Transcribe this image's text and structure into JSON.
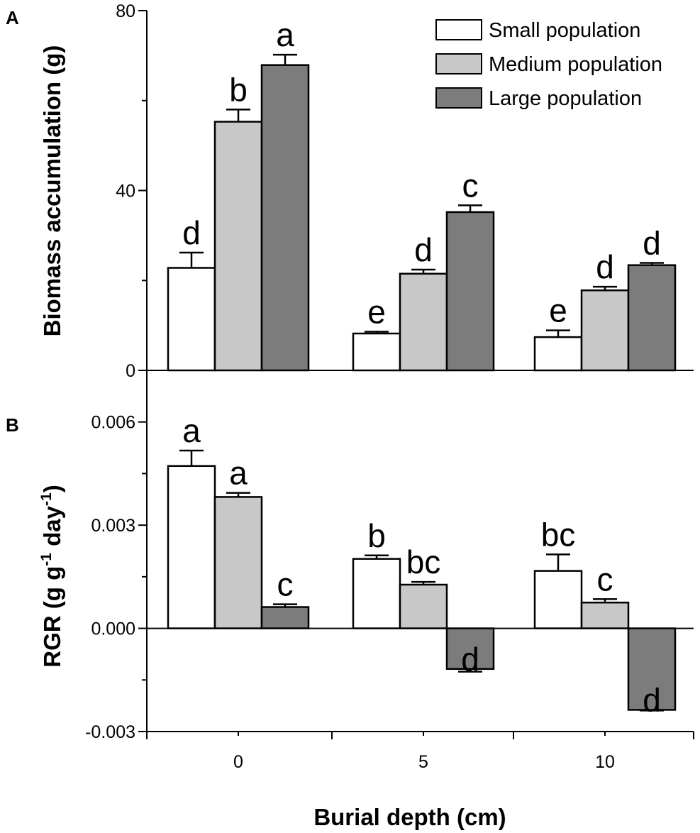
{
  "figure": {
    "xlabel": "Burial depth (cm)",
    "colors": {
      "Small population": "#ffffff",
      "Medium population": "#c8c8c8",
      "Large population": "#7c7c7c",
      "axis": "#000000"
    }
  },
  "chart_data": [
    {
      "type": "bar",
      "panel_label": "A",
      "ylabel": "Biomass accumulation (g)",
      "xlabel": "Burial depth (cm)",
      "categories": [
        "0",
        "5",
        "10"
      ],
      "ylim": [
        0,
        80
      ],
      "y_ticks": [
        0,
        40,
        80
      ],
      "y_tick_labels": [
        "0",
        "40",
        "80"
      ],
      "legend": [
        "Small population",
        "Medium population",
        "Large population"
      ],
      "legend_position": "top-right",
      "series": [
        {
          "name": "Small population",
          "values": [
            22.8,
            8.2,
            7.4
          ],
          "errors": [
            3.4,
            0.4,
            1.5
          ],
          "letters": [
            "d",
            "e",
            "e"
          ]
        },
        {
          "name": "Medium population",
          "values": [
            55.3,
            21.5,
            17.8
          ],
          "errors": [
            2.7,
            0.9,
            0.8
          ],
          "letters": [
            "b",
            "d",
            "d"
          ]
        },
        {
          "name": "Large population",
          "values": [
            67.9,
            35.2,
            23.4
          ],
          "errors": [
            2.3,
            1.5,
            0.5
          ],
          "letters": [
            "a",
            "c",
            "d"
          ]
        }
      ]
    },
    {
      "type": "bar",
      "panel_label": "B",
      "ylabel": "RGR (g g",
      "ylabel_sup1": "-1",
      "ylabel_mid": " day",
      "ylabel_sup2": "-1",
      "ylabel_end": ")",
      "xlabel": "Burial depth (cm)",
      "categories": [
        "0",
        "5",
        "10"
      ],
      "ylim": [
        -0.003,
        0.0075
      ],
      "y_ticks": [
        -0.003,
        0.0,
        0.003,
        0.006
      ],
      "y_tick_labels": [
        "-0.003",
        "0.000",
        "0.003",
        "0.006"
      ],
      "series": [
        {
          "name": "Small population",
          "values": [
            0.00472,
            0.00202,
            0.00167
          ],
          "errors": [
            0.00045,
            0.0001,
            0.00048
          ],
          "letters": [
            "a",
            "b",
            "bc"
          ]
        },
        {
          "name": "Medium population",
          "values": [
            0.00382,
            0.00127,
            0.00075
          ],
          "errors": [
            0.00012,
            8e-05,
            0.0001
          ],
          "letters": [
            "a",
            "bc",
            "c"
          ]
        },
        {
          "name": "Large population",
          "values": [
            0.00062,
            -0.00118,
            -0.00237
          ],
          "errors": [
            8e-05,
            8e-05,
            2e-05
          ],
          "letters": [
            "c",
            "d",
            "d"
          ]
        }
      ]
    }
  ]
}
